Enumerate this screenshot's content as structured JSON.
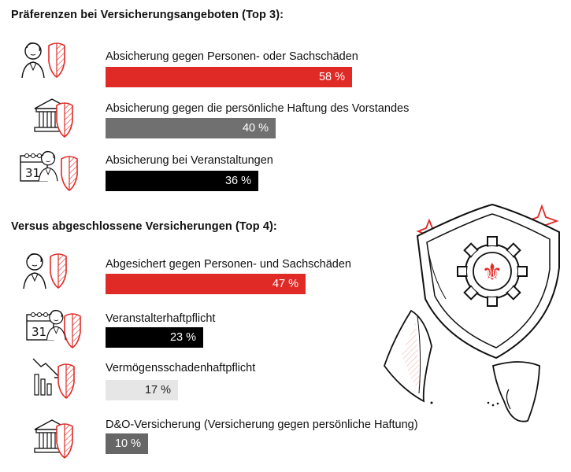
{
  "section1": {
    "title": "Präferenzen bei Versicherungsangeboten (Top 3):"
  },
  "section2": {
    "title": "Versus abgeschlossene Versicherungen (Top 4):"
  },
  "chart_data": [
    {
      "type": "bar",
      "title": "Präferenzen bei Versicherungsangeboten (Top 3):",
      "categories": [
        "Absicherung gegen Personen- oder Sachschäden",
        "Absicherung gegen die persönliche Haftung des Vorstandes",
        "Absicherung bei Veranstaltungen"
      ],
      "values": [
        58,
        40,
        36
      ],
      "value_labels": [
        "58 %",
        "40 %",
        "36 %"
      ],
      "unit": "%",
      "ylim": [
        0,
        100
      ],
      "colors": [
        "#e02a26",
        "#707070",
        "#000000"
      ],
      "icons": [
        "person-shield-icon",
        "institution-shield-icon",
        "calendar-shield-icon"
      ]
    },
    {
      "type": "bar",
      "title": "Versus abgeschlossene Versicherungen (Top 4):",
      "categories": [
        "Abgesichert gegen Personen- und Sachschäden",
        "Veranstalterhaftpflicht",
        "Vermögensschadenhaftpflicht",
        "D&O-Versicherung (Versicherung gegen persönliche Haftung)"
      ],
      "values": [
        47,
        23,
        17,
        10
      ],
      "value_labels": [
        "47 %",
        "23 %",
        "17 %",
        "10 %"
      ],
      "unit": "%",
      "ylim": [
        0,
        100
      ],
      "colors": [
        "#e02a26",
        "#000000",
        "#e6e6e6",
        "#666666"
      ],
      "icons": [
        "person-shield-icon",
        "calendar-shield-icon",
        "declining-chart-shield-icon",
        "institution-shield-icon"
      ]
    }
  ],
  "illustration": {
    "icon": "shield-gear-fleur-de-lis-icon"
  }
}
